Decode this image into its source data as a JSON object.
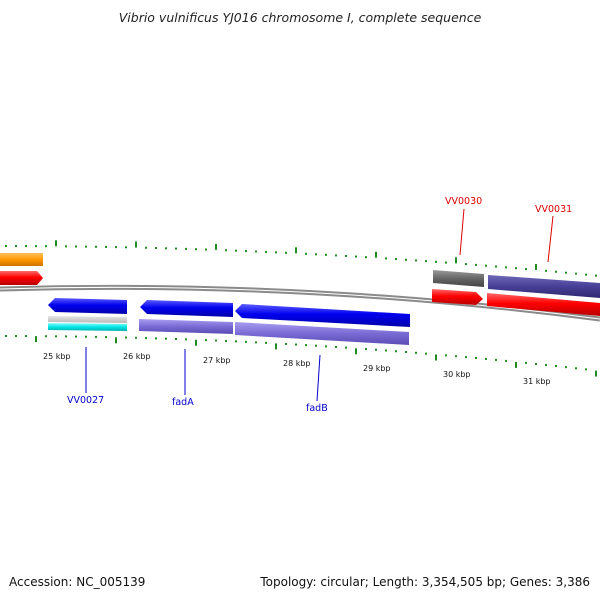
{
  "title": "Vibrio vulnificus YJ016 chromosome I, complete sequence",
  "footer": {
    "accession": "Accession: NC_005139",
    "summary": "Topology: circular; Length: 3,354,505 bp; Genes: 3,386"
  },
  "scale": {
    "ticks": [
      "25 kbp",
      "26 kbp",
      "27 kbp",
      "28 kbp",
      "29 kbp",
      "30 kbp",
      "31 kbp"
    ]
  },
  "genes": {
    "labels": [
      "VV0027",
      "fadA",
      "fadB",
      "VV0030",
      "VV0031"
    ]
  },
  "colors": {
    "forward_gene": "#ff0000",
    "reverse_gene": "#0000ee",
    "cds": "#7a6bd4",
    "backbone": "#888888",
    "tick": "#228b22",
    "orange_feature": "#ff9900",
    "cyan_feature": "#00e6e6",
    "label_forward": "#dd0000",
    "label_reverse": "#0000cc"
  }
}
